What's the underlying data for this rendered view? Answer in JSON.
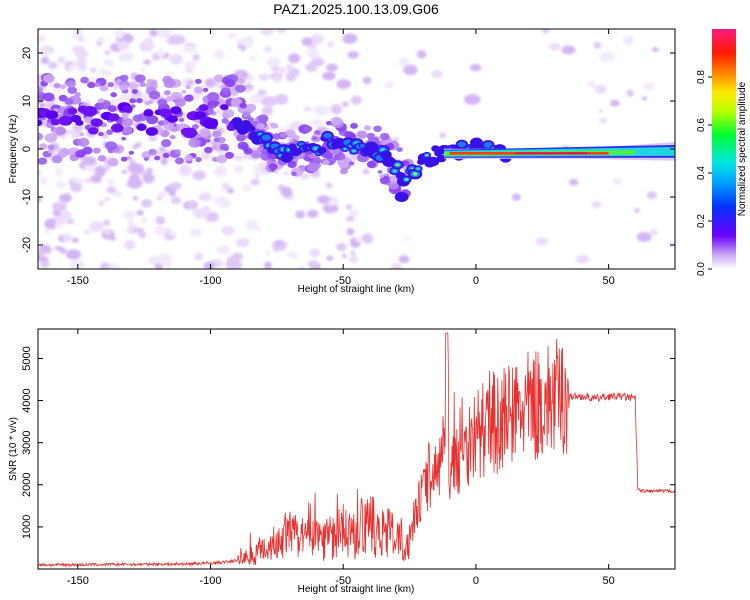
{
  "chart_data": [
    {
      "type": "heatmap",
      "title": "PAZ1.2025.100.13.09.G06",
      "xlabel": "Height of straight line (km)",
      "ylabel": "Frequency (Hz)",
      "xlim": [
        -165,
        75
      ],
      "ylim": [
        -25,
        25
      ],
      "xticks": [
        -150,
        -100,
        -50,
        0,
        50
      ],
      "yticks": [
        -20,
        -10,
        0,
        10,
        20
      ],
      "colorbar": {
        "label": "Normalized spectral amplitude",
        "range": [
          0.0,
          1.0
        ],
        "ticks": [
          0.0,
          0.2,
          0.4,
          0.6,
          0.8
        ],
        "colormap": "rainbow (purple-blue-cyan-green-yellow-red-pink)"
      },
      "ridge": {
        "x": [
          -90,
          -85,
          -80,
          -75,
          -70,
          -65,
          -60,
          -55,
          -50,
          -45,
          -40,
          -35,
          -30,
          -27,
          -25,
          -20,
          -15,
          -10,
          -5,
          0,
          5,
          10,
          20,
          40,
          60,
          75
        ],
        "y": [
          5,
          4,
          2,
          0,
          -1,
          1,
          0,
          2,
          0,
          1,
          0,
          -1,
          -4,
          -6,
          -5,
          -3,
          -1,
          -1,
          0,
          1,
          0,
          -1,
          -1,
          -1,
          -1,
          0
        ]
      },
      "grid": false
    },
    {
      "type": "line",
      "xlabel": "Height of straight line (km)",
      "ylabel": "SNR (10 * v/v)",
      "xlim": [
        -165,
        75
      ],
      "ylim": [
        0,
        5700
      ],
      "xticks": [
        -150,
        -100,
        -50,
        0,
        50
      ],
      "yticks": [
        1000,
        2000,
        3000,
        4000,
        5000
      ],
      "color": "#e8302e",
      "series": [
        {
          "x": [
            -165,
            -150,
            -130,
            -110,
            -100,
            -95,
            -90,
            -85,
            -80,
            -75,
            -70,
            -65,
            -60,
            -55,
            -50,
            -45,
            -40,
            -35,
            -30,
            -27,
            -25,
            -22,
            -20,
            -18,
            -15,
            -12,
            -11,
            -10,
            -8,
            -5,
            -2,
            0,
            3,
            6,
            10,
            15,
            20,
            25,
            30,
            35,
            40,
            45,
            50,
            55,
            60,
            61,
            62,
            65,
            70,
            75
          ],
          "values": [
            100,
            100,
            110,
            120,
            140,
            160,
            200,
            300,
            500,
            650,
            800,
            700,
            800,
            750,
            900,
            800,
            1000,
            900,
            700,
            600,
            700,
            1500,
            1800,
            2100,
            2300,
            2600,
            5600,
            2400,
            2500,
            2800,
            3100,
            3200,
            3300,
            3400,
            3550,
            3700,
            3850,
            3950,
            4050,
            4100,
            4100,
            4050,
            4100,
            4100,
            4050,
            1900,
            1850,
            1850,
            1850,
            1850
          ]
        }
      ],
      "grid": false
    }
  ]
}
